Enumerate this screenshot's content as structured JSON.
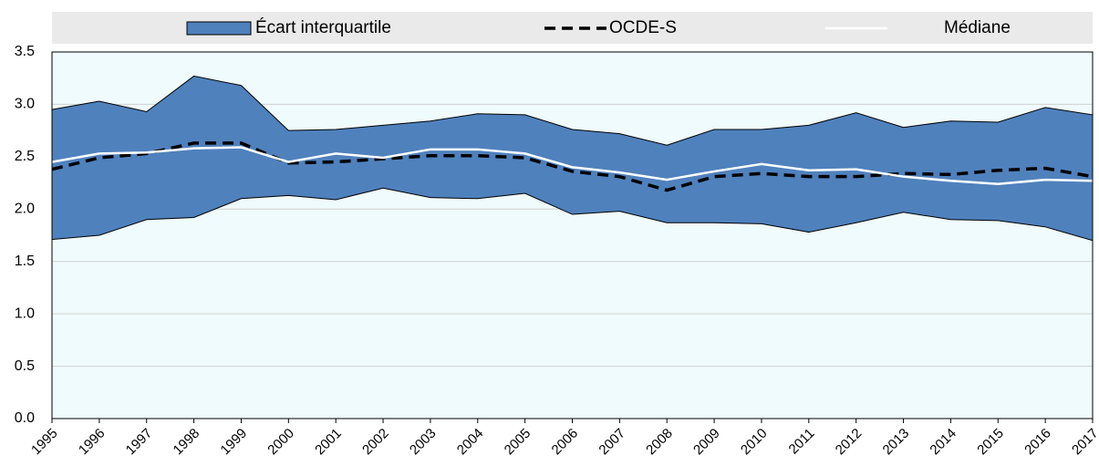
{
  "chart_data": {
    "type": "band-line",
    "x": [
      1995,
      1996,
      1997,
      1998,
      1999,
      2000,
      2001,
      2002,
      2003,
      2004,
      2005,
      2006,
      2007,
      2008,
      2009,
      2010,
      2011,
      2012,
      2013,
      2014,
      2015,
      2016,
      2017
    ],
    "series": [
      {
        "name": "Écart interquartile",
        "type": "band",
        "color": "#4f81bd",
        "upper": [
          2.95,
          3.03,
          2.93,
          3.27,
          3.18,
          2.75,
          2.76,
          2.8,
          2.84,
          2.91,
          2.9,
          2.76,
          2.72,
          2.61,
          2.76,
          2.76,
          2.8,
          2.92,
          2.78,
          2.84,
          2.83,
          2.97,
          2.9
        ],
        "lower": [
          1.71,
          1.75,
          1.9,
          1.92,
          2.1,
          2.13,
          2.09,
          2.2,
          2.11,
          2.1,
          2.15,
          1.95,
          1.98,
          1.87,
          1.87,
          1.86,
          1.78,
          1.87,
          1.97,
          1.9,
          1.89,
          1.83,
          1.7
        ]
      },
      {
        "name": "OCDE-S",
        "type": "dashed",
        "color": "#000000",
        "values": [
          2.38,
          2.49,
          2.53,
          2.63,
          2.63,
          2.44,
          2.45,
          2.48,
          2.51,
          2.51,
          2.49,
          2.36,
          2.31,
          2.18,
          2.31,
          2.34,
          2.31,
          2.31,
          2.34,
          2.33,
          2.37,
          2.39,
          2.31
        ]
      },
      {
        "name": "Médiane",
        "type": "line",
        "color": "#ffffff",
        "values": [
          2.45,
          2.53,
          2.54,
          2.58,
          2.59,
          2.45,
          2.53,
          2.49,
          2.57,
          2.57,
          2.53,
          2.4,
          2.35,
          2.28,
          2.36,
          2.43,
          2.37,
          2.38,
          2.31,
          2.27,
          2.24,
          2.28,
          2.27
        ]
      }
    ],
    "xlim": [
      1995,
      2017
    ],
    "ylim": [
      0,
      3.5
    ],
    "yticks": [
      {
        "value": 0,
        "label": "0.0"
      },
      0.5,
      {
        "value": 1,
        "label": "1.0"
      },
      1.5,
      {
        "value": 2,
        "label": "2.0"
      },
      2.5,
      {
        "value": 3,
        "label": "3.0"
      },
      3.5
    ],
    "grid": true,
    "legend": "top"
  }
}
